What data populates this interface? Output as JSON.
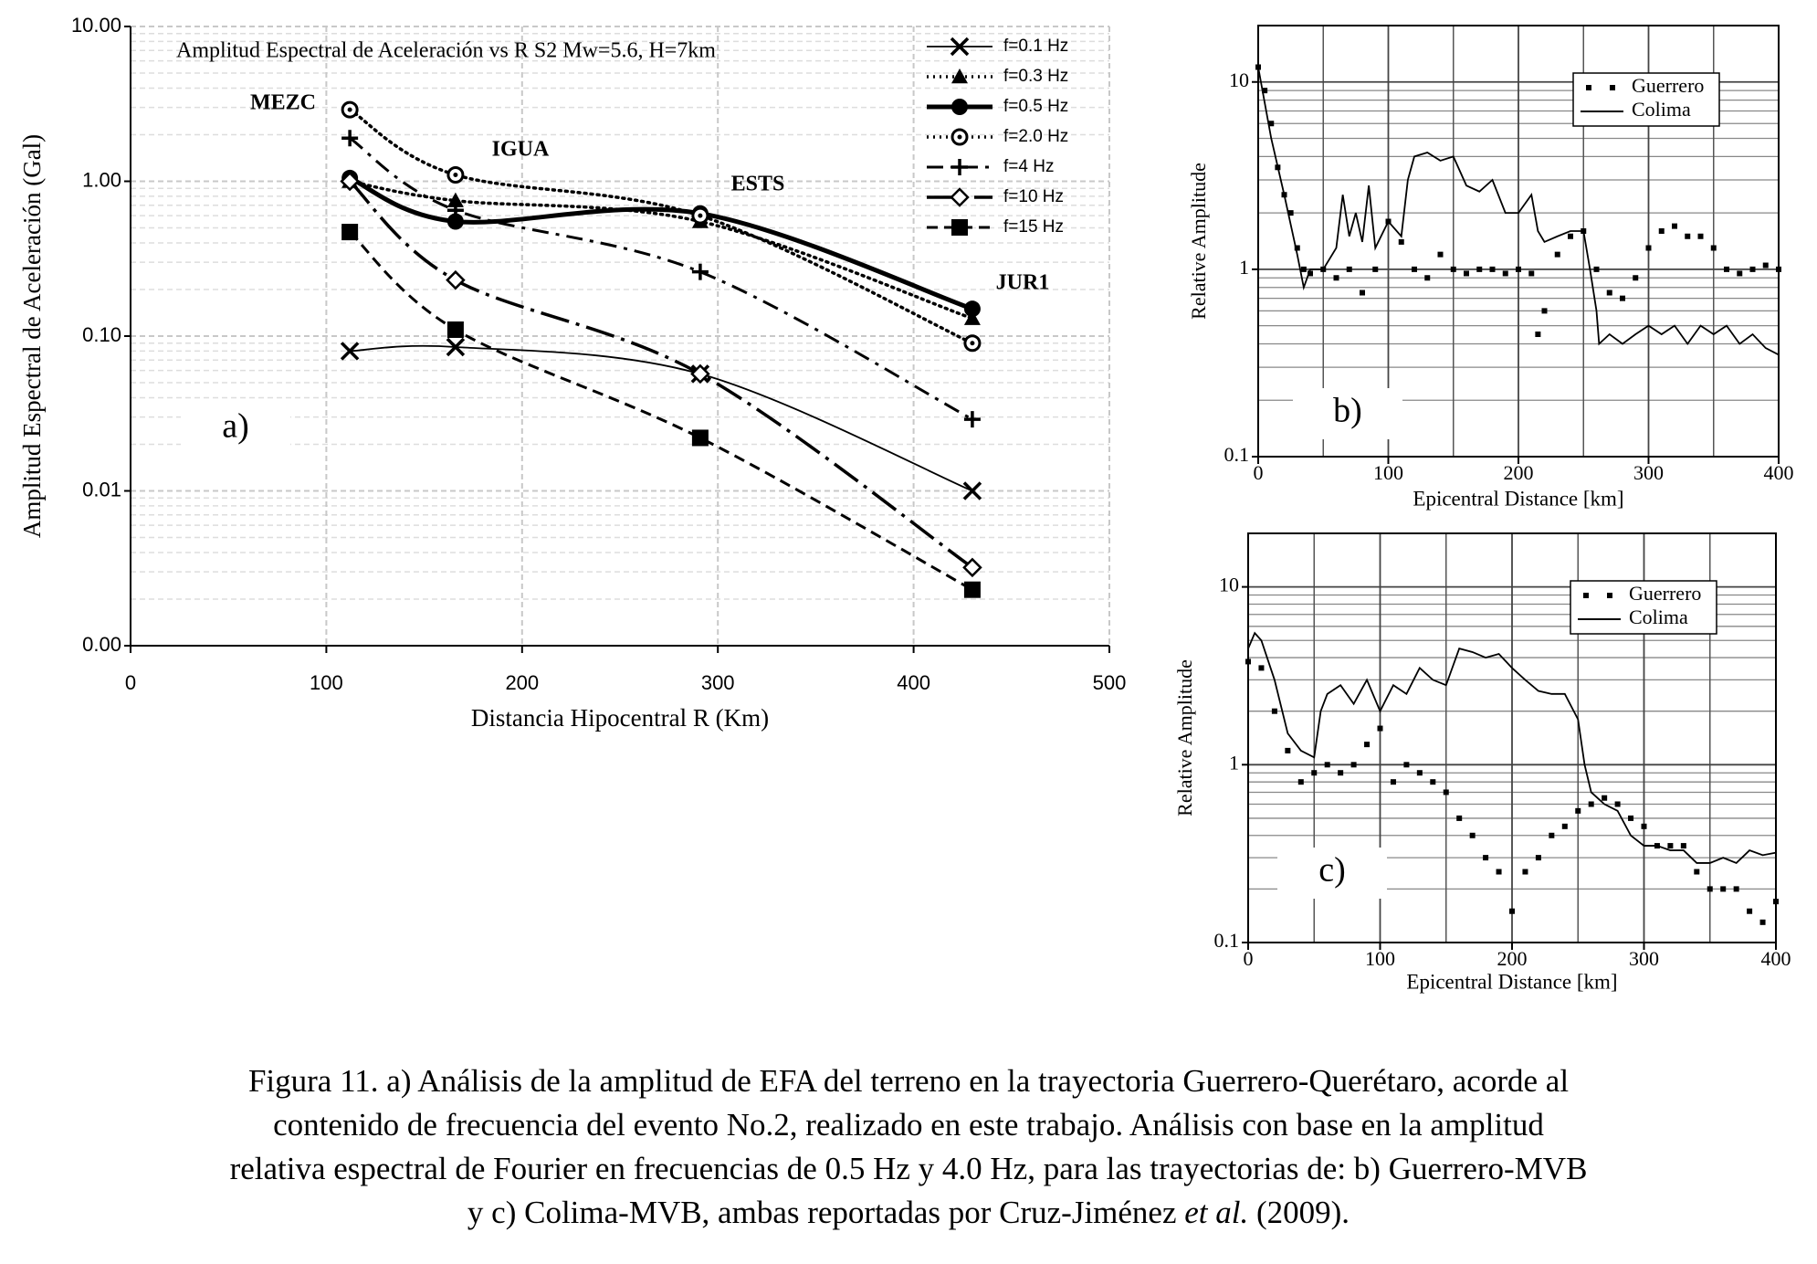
{
  "chart_data": [
    {
      "type": "line",
      "title": "Amplitud Espectral de Aceleración vs R   S2 Mw=5.6, H=7km",
      "xlabel": "Distancia Hipocentral R (Km)",
      "ylabel": "Amplitud Espectral de Aceleración (Gal)",
      "panel_label": "a)",
      "log_y": true,
      "grid": true,
      "grid_style": "dashed",
      "legend": "upper right",
      "x": [
        112,
        166,
        291,
        430
      ],
      "xlim": [
        0,
        500
      ],
      "xticks": [
        0,
        100,
        200,
        300,
        400,
        500
      ],
      "ylim": [
        0.001,
        10
      ],
      "yticks": [
        {
          "value": 0.001,
          "label": "0.00"
        },
        {
          "value": 0.01,
          "label": "0.01"
        },
        {
          "value": 0.1,
          "label": "0.10"
        },
        {
          "value": 1,
          "label": "1.00"
        },
        {
          "value": 10,
          "label": "10.00"
        }
      ],
      "y_minor_ticks": [
        0.002,
        0.003,
        0.004,
        0.005,
        0.006,
        0.007,
        0.008,
        0.009,
        0.02,
        0.03,
        0.04,
        0.05,
        0.06,
        0.07,
        0.08,
        0.09,
        0.2,
        0.3,
        0.4,
        0.5,
        0.6,
        0.7,
        0.8,
        0.9,
        2,
        3,
        4,
        5,
        6,
        7,
        8,
        9
      ],
      "annotations": [
        "MEZC",
        "IGUA",
        "ESTS",
        "JUR1"
      ],
      "series": [
        {
          "name": "f=0.1 Hz",
          "color": "#000000",
          "line": "solid",
          "marker": "x",
          "values": [
            0.08,
            0.085,
            0.057,
            0.01
          ]
        },
        {
          "name": "f=0.3 Hz",
          "color": "#000000",
          "line": "dotted",
          "marker": "triangle",
          "values": [
            1.0,
            0.75,
            0.55,
            0.13
          ]
        },
        {
          "name": "f=0.5 Hz",
          "color": "#000000",
          "line": "thick",
          "marker": "circle",
          "values": [
            1.05,
            0.55,
            0.62,
            0.15
          ]
        },
        {
          "name": "f=2.0 Hz",
          "color": "#000000",
          "line": "dotted",
          "marker": "open-circle",
          "values": [
            2.9,
            1.1,
            0.6,
            0.09
          ]
        },
        {
          "name": "f=4 Hz",
          "color": "#000000",
          "line": "dashdot",
          "marker": "plus",
          "values": [
            1.9,
            0.65,
            0.26,
            0.029
          ]
        },
        {
          "name": "f=10 Hz",
          "color": "#000000",
          "line": "longdashdot",
          "marker": "diamond",
          "values": [
            1.0,
            0.23,
            0.057,
            0.0032
          ]
        },
        {
          "name": "f=15 Hz",
          "color": "#000000",
          "line": "dashed",
          "marker": "square",
          "values": [
            0.47,
            0.11,
            0.022,
            0.0023
          ]
        }
      ]
    },
    {
      "type": "line",
      "xlabel": "Epicentral Distance [km]",
      "ylabel": "Relative Amplitude",
      "panel_label": "b)",
      "log_y": true,
      "grid": true,
      "grid_style": "solid",
      "legend": "upper right",
      "xlim": [
        0,
        400
      ],
      "xticks": [
        0,
        100,
        200,
        300,
        400
      ],
      "x_minor_ticks": [
        50,
        150,
        250,
        350
      ],
      "ylim": [
        0.1,
        20
      ],
      "yticks": [
        0.1,
        1,
        10
      ],
      "y_minor_ticks": [
        0.2,
        0.3,
        0.4,
        0.5,
        0.6,
        0.7,
        0.8,
        0.9,
        2,
        3,
        4,
        5,
        6,
        7,
        8,
        9
      ],
      "series": [
        {
          "name": "Guerrero",
          "color": "#000000",
          "line": "dots",
          "x": [
            0,
            5,
            10,
            15,
            20,
            25,
            30,
            35,
            40,
            50,
            60,
            70,
            80,
            90,
            100,
            110,
            120,
            130,
            140,
            150,
            160,
            170,
            180,
            190,
            200,
            210,
            215,
            220,
            230,
            240,
            250,
            260,
            270,
            280,
            290,
            300,
            310,
            320,
            330,
            340,
            350,
            360,
            370,
            380,
            390,
            400
          ],
          "values": [
            12,
            9,
            6,
            3.5,
            2.5,
            2,
            1.3,
            1.0,
            0.95,
            1.0,
            0.9,
            1.0,
            0.75,
            1.0,
            1.8,
            1.4,
            1.0,
            0.9,
            1.2,
            1.0,
            0.95,
            1.0,
            1.0,
            0.95,
            1.0,
            0.95,
            0.45,
            0.6,
            1.2,
            1.5,
            1.6,
            1.0,
            0.75,
            0.7,
            0.9,
            1.3,
            1.6,
            1.7,
            1.5,
            1.5,
            1.3,
            1.0,
            0.95,
            1.0,
            1.05,
            1.0
          ]
        },
        {
          "name": "Colima",
          "color": "#000000",
          "line": "solid",
          "x": [
            0,
            10,
            20,
            30,
            35,
            40,
            50,
            60,
            65,
            70,
            75,
            80,
            85,
            90,
            100,
            110,
            115,
            120,
            130,
            140,
            150,
            160,
            170,
            180,
            190,
            200,
            210,
            215,
            220,
            230,
            240,
            250,
            255,
            260,
            262,
            270,
            280,
            290,
            300,
            310,
            320,
            330,
            340,
            350,
            360,
            370,
            380,
            390,
            400
          ],
          "values": [
            12,
            5,
            2.5,
            1.2,
            0.8,
            1.0,
            1.0,
            1.3,
            2.5,
            1.5,
            2.0,
            1.4,
            2.8,
            1.3,
            1.8,
            1.5,
            3.0,
            4.0,
            4.2,
            3.8,
            4.0,
            2.8,
            2.6,
            3.0,
            2.0,
            2.0,
            2.5,
            1.6,
            1.4,
            1.5,
            1.6,
            1.6,
            1.0,
            0.6,
            0.4,
            0.45,
            0.4,
            0.45,
            0.5,
            0.45,
            0.5,
            0.4,
            0.5,
            0.45,
            0.5,
            0.4,
            0.45,
            0.38,
            0.35
          ]
        }
      ]
    },
    {
      "type": "line",
      "xlabel": "Epicentral Distance [km]",
      "ylabel": "Relative Amplitude",
      "panel_label": "c)",
      "log_y": true,
      "grid": true,
      "grid_style": "solid",
      "legend": "upper right",
      "xlim": [
        0,
        400
      ],
      "xticks": [
        0,
        100,
        200,
        300,
        400
      ],
      "x_minor_ticks": [
        50,
        150,
        250,
        350
      ],
      "ylim": [
        0.1,
        20
      ],
      "yticks": [
        0.1,
        1,
        10
      ],
      "y_minor_ticks": [
        0.2,
        0.3,
        0.4,
        0.5,
        0.6,
        0.7,
        0.8,
        0.9,
        2,
        3,
        4,
        5,
        6,
        7,
        8,
        9
      ],
      "series": [
        {
          "name": "Guerrero",
          "color": "#000000",
          "line": "dots",
          "x": [
            0,
            10,
            20,
            30,
            40,
            50,
            60,
            70,
            80,
            90,
            100,
            110,
            120,
            130,
            140,
            150,
            160,
            170,
            180,
            190,
            200,
            210,
            220,
            230,
            240,
            250,
            260,
            270,
            280,
            290,
            300,
            310,
            320,
            330,
            340,
            350,
            360,
            370,
            380,
            390,
            400
          ],
          "values": [
            3.8,
            3.5,
            2.0,
            1.2,
            0.8,
            0.9,
            1.0,
            0.9,
            1.0,
            1.3,
            1.6,
            0.8,
            1.0,
            0.9,
            0.8,
            0.7,
            0.5,
            0.4,
            0.3,
            0.25,
            0.15,
            0.25,
            0.3,
            0.4,
            0.45,
            0.55,
            0.6,
            0.65,
            0.6,
            0.5,
            0.45,
            0.35,
            0.35,
            0.35,
            0.25,
            0.2,
            0.2,
            0.2,
            0.15,
            0.13,
            0.17
          ]
        },
        {
          "name": "Colima",
          "color": "#000000",
          "line": "solid",
          "x": [
            0,
            5,
            10,
            20,
            30,
            40,
            50,
            55,
            60,
            70,
            80,
            90,
            100,
            110,
            120,
            130,
            140,
            150,
            160,
            170,
            180,
            190,
            200,
            210,
            220,
            230,
            240,
            250,
            255,
            260,
            270,
            280,
            290,
            300,
            310,
            320,
            330,
            340,
            350,
            360,
            370,
            380,
            390,
            400
          ],
          "values": [
            4.5,
            5.5,
            5,
            3,
            1.5,
            1.2,
            1.1,
            2.0,
            2.5,
            2.8,
            2.2,
            3.0,
            2.0,
            2.8,
            2.5,
            3.5,
            3.0,
            2.8,
            4.5,
            4.3,
            4.0,
            4.2,
            3.5,
            3.0,
            2.6,
            2.5,
            2.5,
            1.8,
            1.0,
            0.7,
            0.6,
            0.55,
            0.4,
            0.35,
            0.35,
            0.33,
            0.33,
            0.28,
            0.28,
            0.3,
            0.28,
            0.33,
            0.31,
            0.32
          ]
        }
      ]
    }
  ],
  "caption": {
    "line1": "Figura 11. a) Análisis de la amplitud de EFA del terreno en la trayectoria Guerrero-Querétaro, acorde al",
    "line2": "contenido de frecuencia del evento No.2, realizado en este trabajo. Análisis con base en la amplitud",
    "line3": "relativa espectral de Fourier en frecuencias de 0.5 Hz y 4.0 Hz, para las trayectorias de: b) Guerrero-MVB",
    "line4a": "y c) Colima-MVB, ambas reportadas por Cruz-Jiménez",
    "line4b": "et al.",
    "line4c": "(2009)."
  }
}
